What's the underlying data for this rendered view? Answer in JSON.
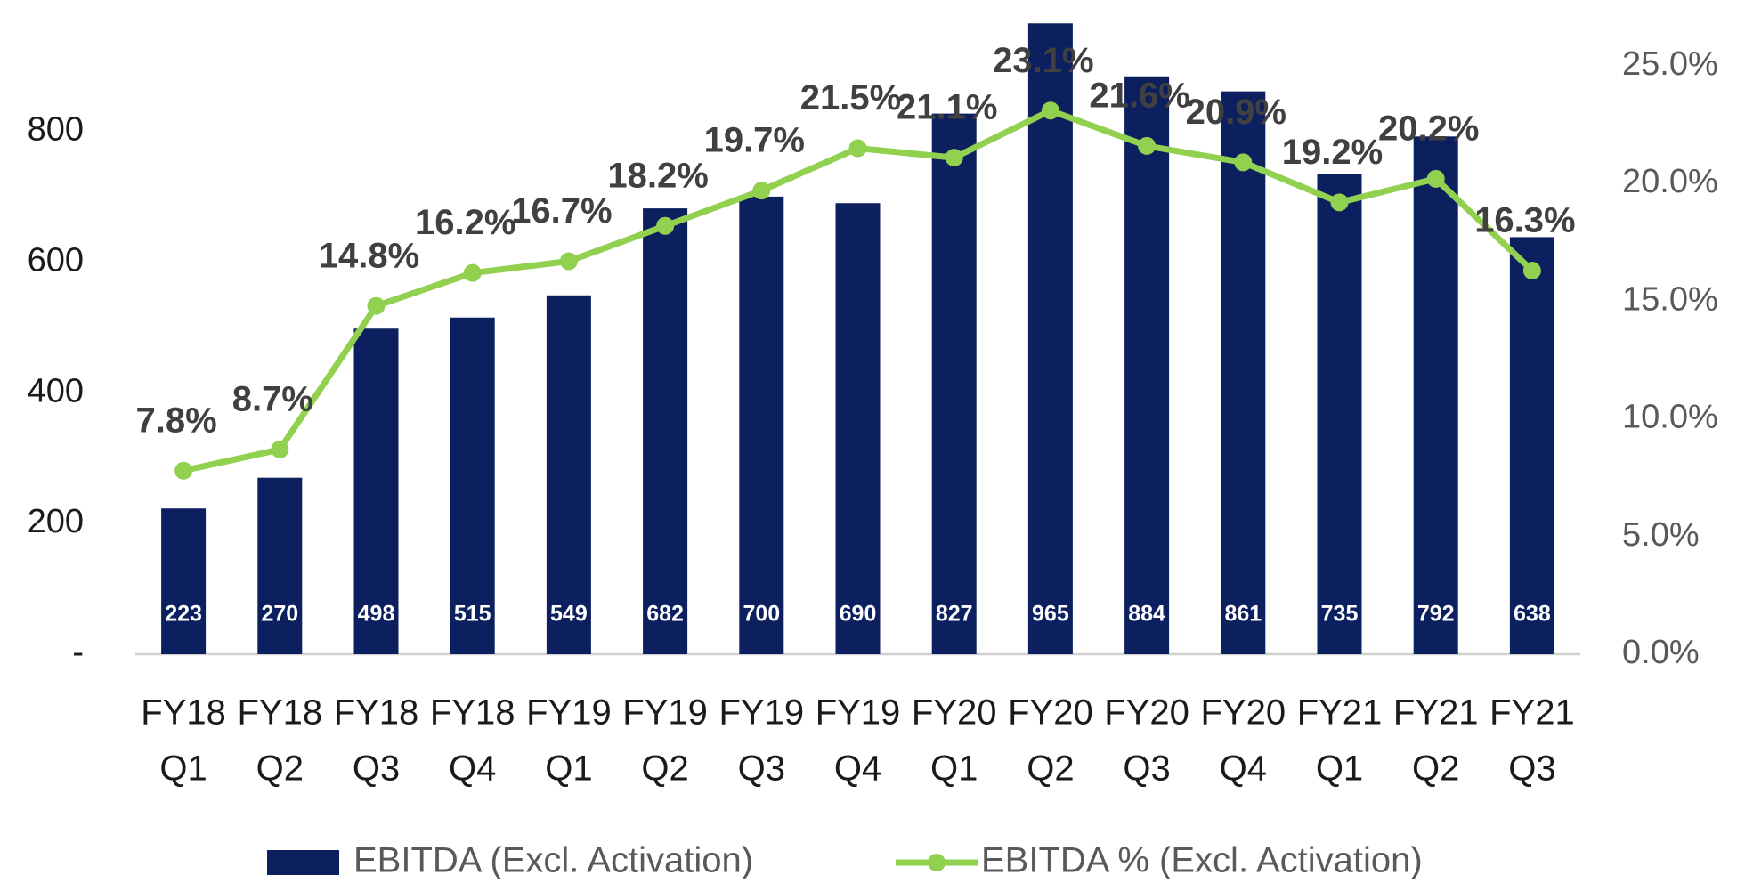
{
  "chart_data": {
    "type": "bar",
    "categories": [
      [
        "FY18",
        "Q1"
      ],
      [
        "FY18",
        "Q2"
      ],
      [
        "FY18",
        "Q3"
      ],
      [
        "FY18",
        "Q4"
      ],
      [
        "FY19",
        "Q1"
      ],
      [
        "FY19",
        "Q2"
      ],
      [
        "FY19",
        "Q3"
      ],
      [
        "FY19",
        "Q4"
      ],
      [
        "FY20",
        "Q1"
      ],
      [
        "FY20",
        "Q2"
      ],
      [
        "FY20",
        "Q3"
      ],
      [
        "FY20",
        "Q4"
      ],
      [
        "FY21",
        "Q1"
      ],
      [
        "FY21",
        "Q2"
      ],
      [
        "FY21",
        "Q3"
      ]
    ],
    "series": [
      {
        "name": "EBITDA (Excl. Activation)",
        "type": "bar",
        "color": "#0c1f5e",
        "values": [
          223,
          270,
          498,
          515,
          549,
          682,
          700,
          690,
          827,
          965,
          884,
          861,
          735,
          792,
          638
        ]
      },
      {
        "name": "EBITDA % (Excl. Activation)",
        "type": "line",
        "axis": "y2",
        "color": "#92d050",
        "values": [
          7.8,
          8.7,
          14.8,
          16.2,
          16.7,
          18.2,
          19.7,
          21.5,
          21.1,
          23.1,
          21.6,
          20.9,
          19.2,
          20.2,
          16.3
        ],
        "value_labels": [
          "7.8%",
          "8.7%",
          "14.8%",
          "16.2%",
          "16.7%",
          "18.2%",
          "19.7%",
          "21.5%",
          "21.1%",
          "23.1%",
          "21.6%",
          "20.9%",
          "19.2%",
          "20.2%",
          "16.3%"
        ]
      }
    ],
    "ylim": [
      0,
      900
    ],
    "yticks": [
      {
        "value": 0,
        "label": "-"
      },
      200,
      400,
      600,
      800
    ],
    "y2lim": [
      0,
      25
    ],
    "y2ticks": [
      {
        "value": 0,
        "label": "0.0%"
      },
      {
        "value": 5,
        "label": "5.0%"
      },
      {
        "value": 10,
        "label": "10.0%"
      },
      {
        "value": 15,
        "label": "15.0%"
      },
      {
        "value": 20,
        "label": "20.0%"
      },
      {
        "value": 25,
        "label": "25.0%"
      }
    ],
    "legend": "bottom"
  }
}
